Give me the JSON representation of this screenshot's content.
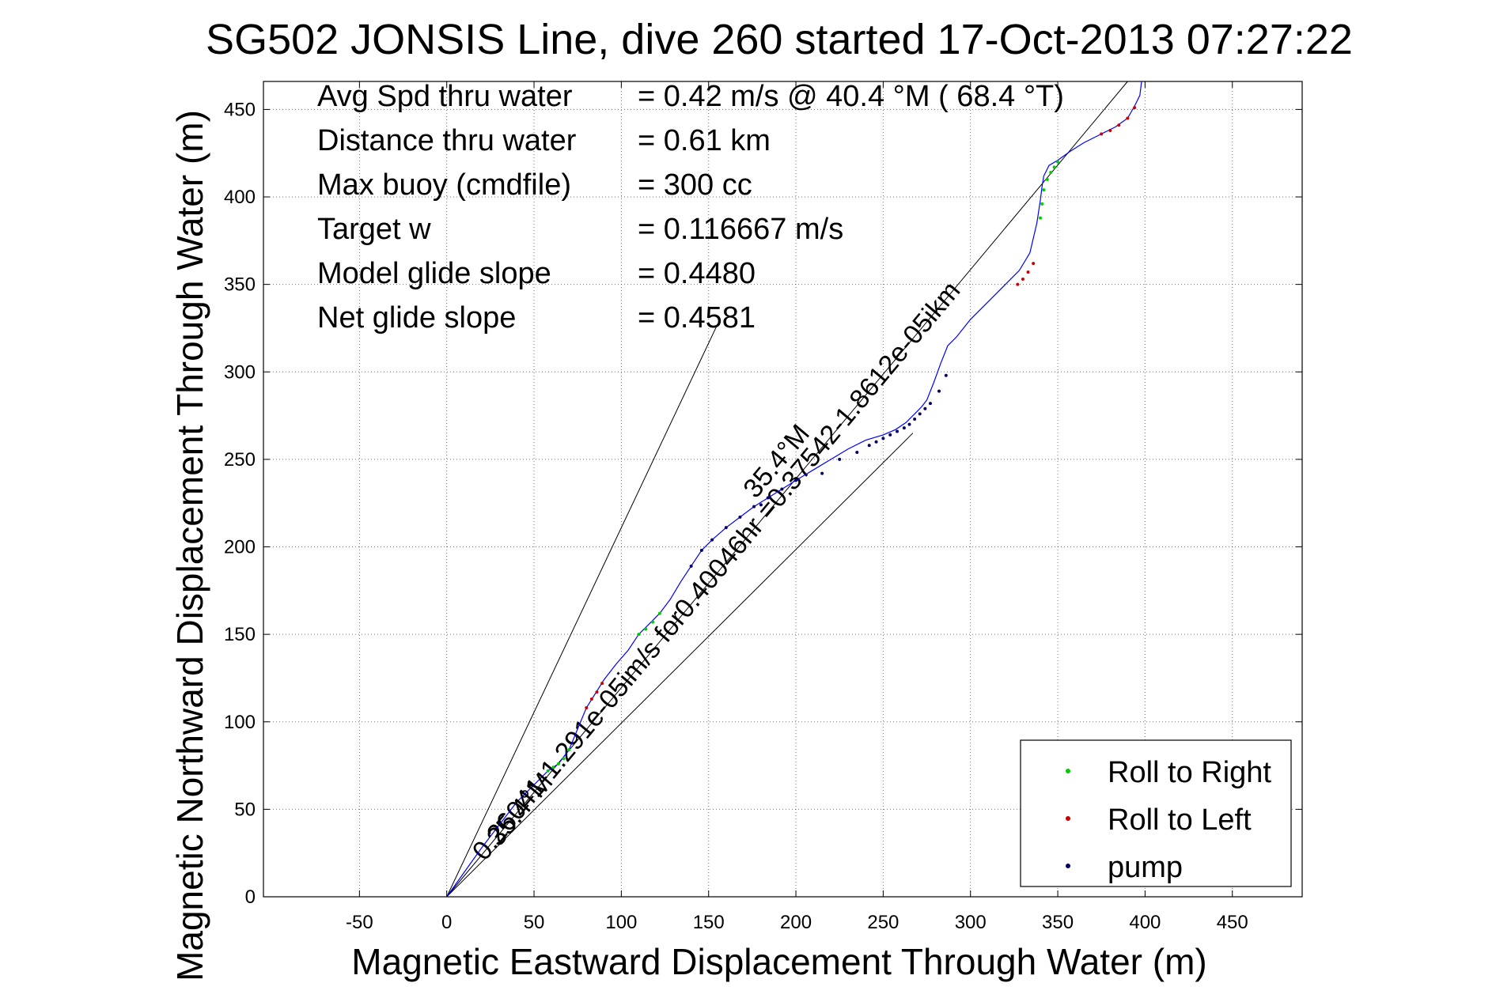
{
  "chart_data": {
    "type": "line",
    "title": "SG502 JONSIS Line, dive 260 started 17-Oct-2013 07:27:22",
    "xlabel": "Magnetic Eastward Displacement Through Water (m)",
    "ylabel": "Magnetic Northward Displacement Through Water (m)",
    "xlim": [
      -105,
      490
    ],
    "ylim": [
      0,
      466
    ],
    "x_ticks": [
      -50,
      0,
      50,
      100,
      150,
      200,
      250,
      300,
      350,
      400,
      450
    ],
    "y_ticks": [
      0,
      50,
      100,
      150,
      200,
      250,
      300,
      350,
      400,
      450
    ],
    "grid": true,
    "stats": [
      {
        "label": "Avg Spd thru water",
        "value": "=  0.42 m/s @  40.4 °M ( 68.4 °T)"
      },
      {
        "label": "Distance thru water",
        "value": "=  0.61 km"
      },
      {
        "label": "Max buoy (cmdfile)",
        "value": "= 300 cc"
      },
      {
        "label": "Target w",
        "value": "= 0.116667 m/s"
      },
      {
        "label": "Model glide slope",
        "value": "= 0.4480"
      },
      {
        "label": "Net glide slope",
        "value": "= 0.4581"
      }
    ],
    "track": {
      "color": "#0000ff",
      "x": [
        0,
        10,
        20,
        30,
        40,
        50,
        58,
        64,
        70,
        75,
        80,
        85,
        90,
        97,
        104,
        110,
        116,
        122,
        128,
        134,
        140,
        146,
        152,
        160,
        168,
        176,
        184,
        192,
        200,
        210,
        220,
        230,
        240,
        250,
        257,
        263,
        268,
        272,
        275,
        279,
        283,
        287,
        292,
        300,
        310,
        320,
        328,
        334,
        338,
        340,
        341,
        342,
        345,
        350,
        357,
        365,
        375,
        383,
        390,
        394,
        397,
        398
      ],
      "y": [
        0,
        14,
        28,
        41,
        54,
        64,
        72,
        76,
        84,
        96,
        108,
        116,
        124,
        133,
        141,
        150,
        156,
        162,
        170,
        180,
        189,
        198,
        204,
        211,
        217,
        223,
        228,
        233,
        238,
        244,
        250,
        256,
        261,
        264,
        267,
        271,
        276,
        280,
        284,
        294,
        305,
        315,
        320,
        330,
        340,
        350,
        358,
        368,
        385,
        398,
        406,
        412,
        418,
        421,
        426,
        431,
        436,
        440,
        445,
        452,
        458,
        466
      ]
    },
    "heading_lines": [
      {
        "label": "0.26041-1.291e-05im/s for0.40046hr =0.37542-1.8612e-05ikm",
        "x": [
          0,
          390
        ],
        "y": [
          0,
          466
        ]
      },
      {
        "label": "",
        "x": [
          0,
          155
        ],
        "y": [
          0,
          327
        ]
      },
      {
        "label": "",
        "x": [
          0,
          267
        ],
        "y": [
          0,
          265
        ]
      }
    ],
    "annotations": [
      {
        "text": "35.4°M",
        "x": 30,
        "y": 28
      },
      {
        "text": "35.4°M",
        "x": 177,
        "y": 227
      }
    ],
    "series": [
      {
        "name": "Roll to Right",
        "color": "#00cc00",
        "x": [
          58,
          61,
          64,
          67,
          70,
          110,
          114,
          118,
          122,
          340,
          341,
          342,
          344,
          346,
          348,
          350
        ],
        "y": [
          72,
          74,
          76,
          79,
          84,
          150,
          153,
          157,
          162,
          388,
          396,
          404,
          410,
          414,
          417,
          420
        ]
      },
      {
        "name": "Roll to Left",
        "color": "#cc0000",
        "x": [
          80,
          83,
          86,
          89,
          327,
          330,
          333,
          336,
          375,
          380,
          385,
          390,
          394
        ],
        "y": [
          108,
          113,
          117,
          122,
          350,
          353,
          357,
          362,
          436,
          438,
          441,
          445,
          451
        ]
      },
      {
        "name": "pump",
        "color": "#000066",
        "x": [
          140,
          146,
          152,
          160,
          168,
          176,
          180,
          184,
          192,
          200,
          215,
          225,
          235,
          242,
          246,
          250,
          254,
          258,
          262,
          265,
          268,
          271,
          274,
          277,
          282,
          286
        ],
        "y": [
          189,
          198,
          204,
          211,
          217,
          223,
          224,
          228,
          233,
          238,
          242,
          250,
          254,
          258,
          260,
          262,
          264,
          266,
          268,
          270,
          273,
          276,
          279,
          282,
          289,
          298
        ]
      }
    ],
    "legend": {
      "placement": "bottom-right",
      "entries": [
        {
          "label": "Roll to Right",
          "color": "#00cc00"
        },
        {
          "label": "Roll to Left",
          "color": "#cc0000"
        },
        {
          "label": "pump",
          "color": "#000066"
        }
      ]
    }
  }
}
